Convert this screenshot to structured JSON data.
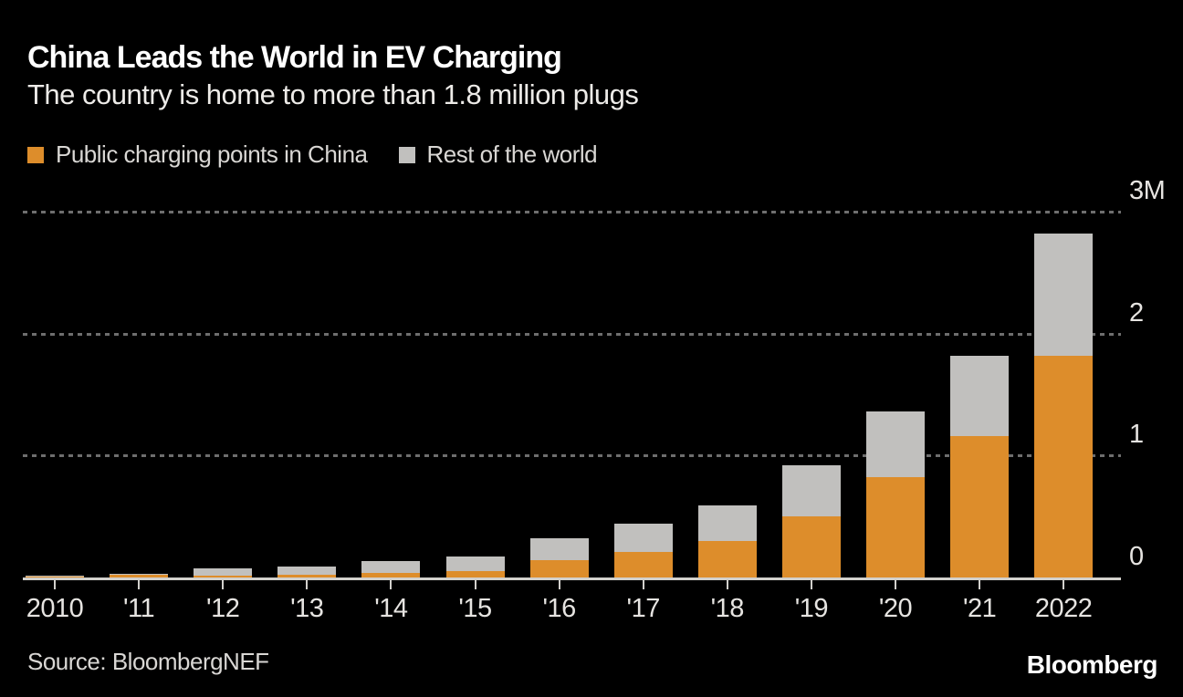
{
  "header": {
    "title": "China Leads the World in EV Charging",
    "subtitle": "The country is home to more than 1.8 million plugs"
  },
  "legend": {
    "items": [
      {
        "id": "china",
        "label": "Public charging points in China",
        "color": "#DD8D2B"
      },
      {
        "id": "rest",
        "label": "Rest of the world",
        "color": "#C1C0BE"
      }
    ]
  },
  "chart_data": {
    "type": "bar",
    "stacked": true,
    "title": "China Leads the World in EV Charging",
    "subtitle": "The country is home to more than 1.8 million plugs",
    "xlabel": "",
    "ylabel": "",
    "units": "millions of public charging points",
    "categories": [
      "2010",
      "'11",
      "'12",
      "'13",
      "'14",
      "'15",
      "'16",
      "'17",
      "'18",
      "'19",
      "'20",
      "'21",
      "2022"
    ],
    "series": [
      {
        "name": "Public charging points in China",
        "color": "#DD8D2B",
        "values": [
          0.005,
          0.022,
          0.015,
          0.022,
          0.04,
          0.055,
          0.14,
          0.21,
          0.3,
          0.5,
          0.82,
          1.16,
          1.82
        ]
      },
      {
        "name": "Rest of the world",
        "color": "#C1C0BE",
        "values": [
          0.013,
          0.01,
          0.063,
          0.065,
          0.095,
          0.12,
          0.18,
          0.23,
          0.29,
          0.42,
          0.54,
          0.66,
          1.0
        ]
      }
    ],
    "ylim": [
      0,
      3
    ],
    "yticks": [
      {
        "value": 0,
        "label": "0"
      },
      {
        "value": 1,
        "label": "1"
      },
      {
        "value": 2,
        "label": "2"
      },
      {
        "value": 3,
        "label": "3M"
      }
    ],
    "gridlines": [
      1,
      2,
      3
    ],
    "grid_style": "dashed",
    "legend_position": "top-left",
    "axis_labels_side": "right"
  },
  "footer": {
    "source": "Source: BloombergNEF",
    "logo": "Bloomberg"
  },
  "colors": {
    "background": "#000000",
    "gridline": "#6E6E6E",
    "axis": "#D2D0CC",
    "title": "#FFFFFF",
    "text": "#D9D7D4"
  }
}
